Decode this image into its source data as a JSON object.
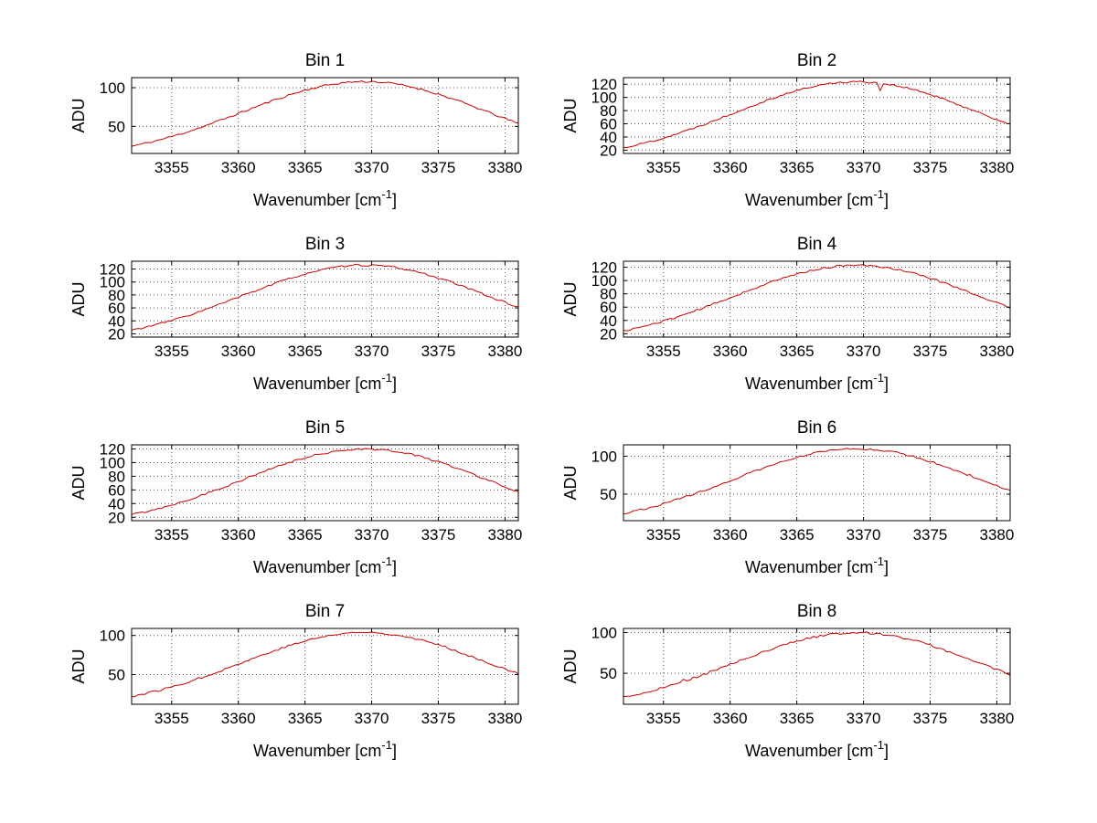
{
  "figure": {
    "background": "#ffffff",
    "axis_color": "#000000",
    "grid_color": "#555555",
    "line_color": "#cc0000"
  },
  "chart_data": {
    "type": "line",
    "layout": {
      "rows": 4,
      "cols": 2,
      "grid": "on",
      "legend": "none"
    },
    "xlabel_prefix": "Wavenumber [cm",
    "xlabel_sup": "-1",
    "xlabel_suffix": "]",
    "ylabel": "ADU",
    "xlim": [
      3352,
      3381
    ],
    "xticks": [
      3355,
      3360,
      3365,
      3370,
      3375,
      3380
    ],
    "x": [
      3352,
      3353,
      3354,
      3355,
      3356,
      3357,
      3358,
      3359,
      3360,
      3361,
      3362,
      3363,
      3364,
      3365,
      3366,
      3367,
      3368,
      3369,
      3370,
      3371,
      3372,
      3373,
      3374,
      3375,
      3376,
      3377,
      3378,
      3379,
      3380,
      3381
    ],
    "subplots": [
      {
        "title": "Bin 1",
        "ylim": [
          15,
          113
        ],
        "yticks": [
          50,
          100
        ],
        "noise": 1.3,
        "seed": 11,
        "anomalies": [],
        "values": [
          24.3,
          28.0,
          32.1,
          36.8,
          42.0,
          47.7,
          53.7,
          60.1,
          66.6,
          73.2,
          79.7,
          85.9,
          91.6,
          96.7,
          101.0,
          104.4,
          106.7,
          107.9,
          107.9,
          106.7,
          104.4,
          101.0,
          96.7,
          91.6,
          85.9,
          79.7,
          73.2,
          66.6,
          60.1,
          53.7
        ]
      },
      {
        "title": "Bin 2",
        "ylim": [
          15,
          130
        ],
        "yticks": [
          20,
          40,
          60,
          80,
          100,
          120
        ],
        "noise": 1.4,
        "seed": 22,
        "anomalies": [
          {
            "x": 3371.3,
            "dy": -11
          }
        ],
        "values": [
          23.6,
          28.0,
          33.0,
          38.6,
          44.8,
          51.6,
          58.9,
          66.5,
          74.3,
          82.3,
          90.0,
          97.5,
          104.3,
          110.5,
          115.6,
          119.6,
          122.4,
          123.8,
          123.8,
          122.4,
          119.6,
          115.6,
          110.5,
          104.3,
          97.5,
          90.0,
          82.3,
          74.3,
          66.5,
          58.9
        ]
      },
      {
        "title": "Bin 3",
        "ylim": [
          15,
          132
        ],
        "yticks": [
          20,
          40,
          60,
          80,
          100,
          120
        ],
        "noise": 1.4,
        "seed": 33,
        "anomalies": [],
        "values": [
          25.6,
          30.0,
          35.0,
          40.6,
          46.8,
          53.6,
          60.9,
          68.5,
          76.3,
          84.3,
          92.0,
          99.5,
          106.3,
          112.5,
          117.6,
          121.6,
          124.4,
          125.8,
          125.8,
          124.4,
          121.6,
          117.6,
          112.5,
          106.3,
          99.5,
          92.0,
          84.3,
          76.3,
          68.5,
          60.9
        ]
      },
      {
        "title": "Bin 4",
        "ylim": [
          15,
          129
        ],
        "yticks": [
          20,
          40,
          60,
          80,
          100,
          120
        ],
        "noise": 1.4,
        "seed": 44,
        "anomalies": [],
        "values": [
          24.3,
          28.6,
          33.5,
          39.0,
          45.1,
          51.8,
          59.0,
          66.5,
          74.2,
          82.0,
          89.6,
          96.9,
          103.7,
          109.7,
          114.8,
          118.7,
          121.4,
          122.8,
          122.8,
          121.4,
          118.7,
          114.8,
          109.7,
          103.7,
          96.9,
          89.6,
          82.0,
          74.2,
          66.5,
          59.0
        ]
      },
      {
        "title": "Bin 5",
        "ylim": [
          15,
          126
        ],
        "yticks": [
          20,
          40,
          60,
          80,
          100,
          120
        ],
        "noise": 1.4,
        "seed": 55,
        "anomalies": [],
        "values": [
          23.8,
          28.0,
          32.8,
          38.1,
          44.1,
          50.6,
          57.6,
          64.9,
          72.4,
          80.0,
          87.4,
          94.6,
          101.2,
          107.0,
          112.0,
          115.8,
          118.5,
          119.8,
          119.8,
          118.5,
          115.8,
          112.0,
          107.0,
          101.2,
          94.6,
          87.4,
          80.0,
          72.4,
          64.9,
          57.6
        ]
      },
      {
        "title": "Bin 6",
        "ylim": [
          15,
          115
        ],
        "yticks": [
          50,
          100
        ],
        "noise": 1.3,
        "seed": 66,
        "anomalies": [],
        "values": [
          24.7,
          28.4,
          32.6,
          37.4,
          42.7,
          48.5,
          54.6,
          61.1,
          67.8,
          74.5,
          81.1,
          87.4,
          93.3,
          98.5,
          102.9,
          106.3,
          108.7,
          109.9,
          109.9,
          108.7,
          106.3,
          102.9,
          98.5,
          93.3,
          87.4,
          81.1,
          74.5,
          67.8,
          61.1,
          54.6
        ]
      },
      {
        "title": "Bin 7",
        "ylim": [
          12,
          109
        ],
        "yticks": [
          50,
          100
        ],
        "noise": 1.3,
        "seed": 77,
        "anomalies": [],
        "values": [
          22.0,
          25.6,
          29.6,
          34.2,
          39.3,
          44.9,
          50.8,
          57.0,
          63.4,
          69.9,
          76.3,
          82.3,
          87.9,
          92.9,
          97.2,
          100.4,
          102.7,
          103.9,
          103.9,
          102.7,
          100.4,
          97.2,
          92.9,
          87.9,
          82.3,
          76.3,
          69.9,
          63.4,
          57.0,
          50.8
        ]
      },
      {
        "title": "Bin 8",
        "ylim": [
          12,
          105
        ],
        "yticks": [
          50,
          100
        ],
        "noise": 1.3,
        "seed": 88,
        "anomalies": [
          {
            "x": 3356.4,
            "dy": 4
          }
        ],
        "values": [
          20.5,
          24.0,
          27.9,
          32.4,
          37.3,
          42.7,
          48.4,
          54.5,
          60.7,
          67.0,
          73.1,
          79.0,
          84.4,
          89.3,
          93.4,
          96.6,
          98.7,
          99.9,
          99.9,
          98.7,
          96.6,
          93.4,
          89.3,
          84.4,
          79.0,
          73.1,
          67.0,
          60.7,
          54.5,
          48.4
        ]
      }
    ]
  }
}
